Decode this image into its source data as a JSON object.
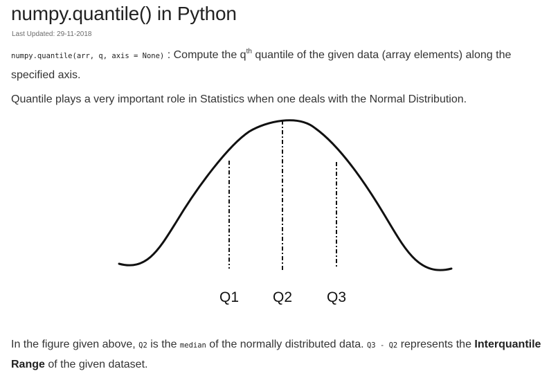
{
  "article": {
    "title": "numpy.quantile() in Python",
    "last_updated": "Last Updated: 29-11-2018"
  },
  "definition": {
    "signature": "numpy.quantile(arr, q, axis = None)",
    "separator": " : ",
    "text_before_sup": "Compute the q",
    "superscript": "th",
    "text_after_sup": " quantile of the given data (array elements) along the specified axis."
  },
  "intro_sentence": "Quantile plays a very important role in Statistics when one deals with the Normal Distribution.",
  "figure": {
    "labels": [
      "Q1",
      "Q2",
      "Q3"
    ]
  },
  "explanation": {
    "t1": "In the figure given above, ",
    "c1": "Q2",
    "t2": " is the ",
    "c2": "median",
    "t3": " of the normally distributed data. ",
    "c3": "Q3 - Q2",
    "t4": " represents the ",
    "b1": "Interquantile Range",
    "t5": " of the given dataset."
  }
}
